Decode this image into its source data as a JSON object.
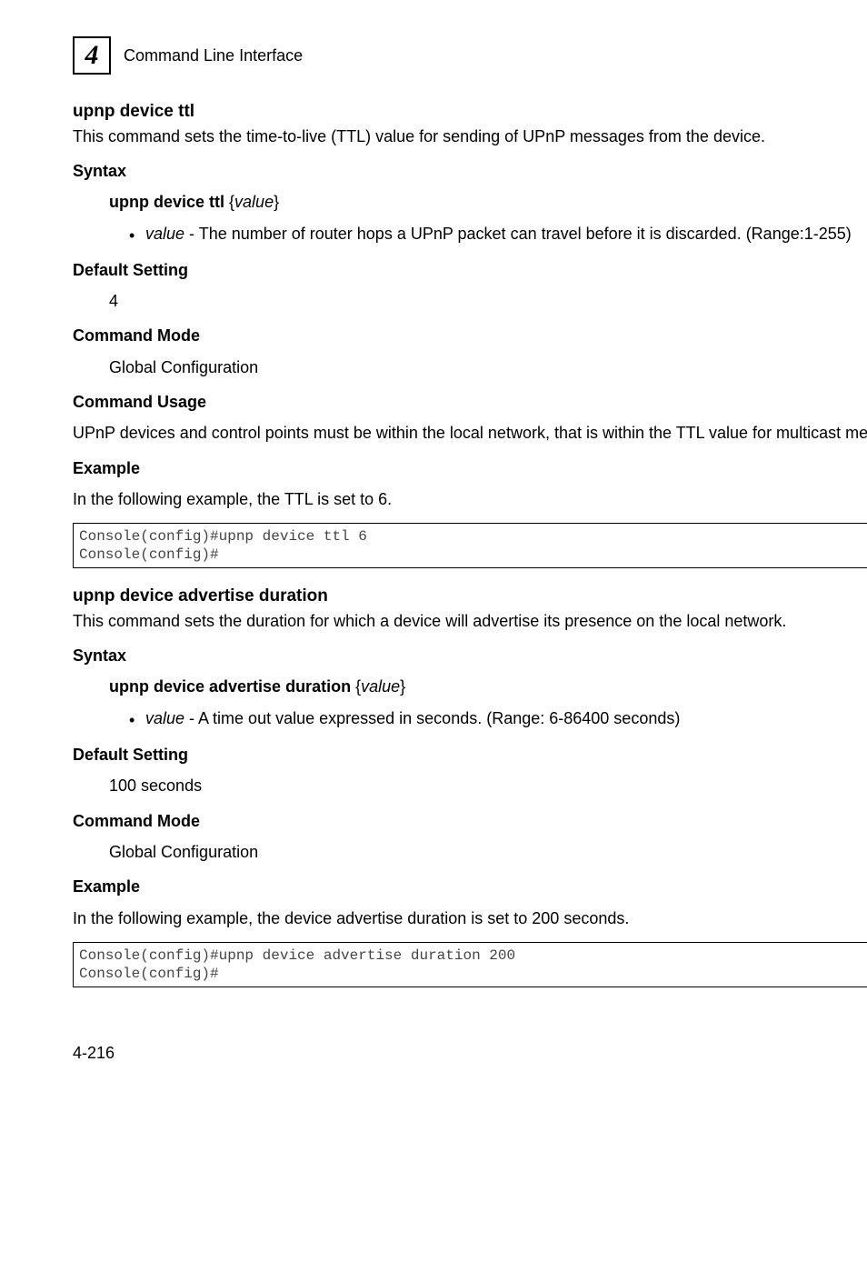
{
  "header": {
    "chapter_number": "4",
    "running_title": "Command Line Interface"
  },
  "section1": {
    "heading": "upnp device ttl",
    "intro": "This command sets the time-to-live (TTL) value for sending of UPnP messages from the device.",
    "syntax_label": "Syntax",
    "syntax_cmd_bold": "upnp device ttl",
    "syntax_cmd_arg": "value",
    "bullet_term": "value",
    "bullet_desc": " - The number of router hops a UPnP packet can travel before it is discarded. (Range:1-255)",
    "default_label": "Default Setting",
    "default_value": "4",
    "mode_label": "Command Mode",
    "mode_value": "Global Configuration",
    "usage_label": "Command Usage",
    "usage_text": "UPnP devices and control points must be within the local network, that is within the TTL value for multicast messages.",
    "example_label": "Example",
    "example_intro": "In the following example, the TTL is set to 6.",
    "code": "Console(config)#upnp device ttl 6\nConsole(config)#"
  },
  "section2": {
    "heading": "upnp device advertise duration",
    "intro": "This command sets the duration for which a device will advertise its presence on the local network.",
    "syntax_label": "Syntax",
    "syntax_cmd_bold": "upnp device advertise duration",
    "syntax_cmd_arg": "value",
    "bullet_term": "value",
    "bullet_desc": " - A time out value expressed in seconds. (Range: 6-86400 seconds)",
    "default_label": "Default Setting",
    "default_value": "100 seconds",
    "mode_label": "Command Mode",
    "mode_value": "Global Configuration",
    "example_label": "Example",
    "example_intro": "In the following example, the device advertise duration is set to 200 seconds.",
    "code": "Console(config)#upnp device advertise duration 200\nConsole(config)#"
  },
  "footer": {
    "page_number": "4-216"
  }
}
